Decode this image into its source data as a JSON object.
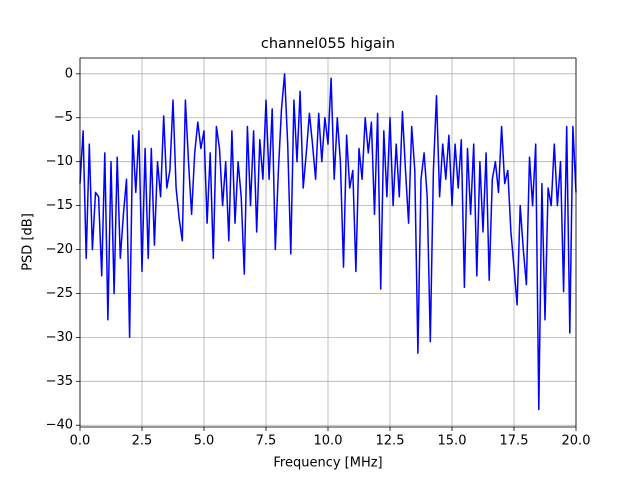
{
  "chart_data": {
    "type": "line",
    "title": "channel055 higain",
    "x_label": "Frequency [MHz]",
    "y_label": "PSD [dB]",
    "xlim": [
      0,
      20
    ],
    "ylim": [
      -40.2,
      1.8
    ],
    "grid": true,
    "xticks": [
      {
        "value": 0,
        "label": "0.0"
      },
      2.5,
      {
        "value": 5,
        "label": "5.0"
      },
      7.5,
      {
        "value": 10,
        "label": "10.0"
      },
      12.5,
      {
        "value": 15,
        "label": "15.0"
      },
      17.5,
      {
        "value": 20,
        "label": "20.0"
      }
    ],
    "yticks": [
      {
        "value": -40,
        "label": "−40"
      },
      {
        "value": -35,
        "label": "−35"
      },
      {
        "value": -30,
        "label": "−30"
      },
      {
        "value": -25,
        "label": "−25"
      },
      {
        "value": -20,
        "label": "−20"
      },
      {
        "value": -15,
        "label": "−15"
      },
      {
        "value": -10,
        "label": "−10"
      },
      {
        "value": -5,
        "label": "−5"
      },
      0
    ],
    "x": [
      0,
      0.125,
      0.25,
      0.375,
      0.5,
      0.625,
      0.75,
      0.875,
      1,
      1.125,
      1.25,
      1.375,
      1.5,
      1.625,
      1.75,
      1.875,
      2,
      2.125,
      2.25,
      2.375,
      2.5,
      2.625,
      2.75,
      2.875,
      3,
      3.125,
      3.25,
      3.375,
      3.5,
      3.625,
      3.75,
      3.875,
      4,
      4.125,
      4.25,
      4.375,
      4.5,
      4.625,
      4.75,
      4.875,
      5,
      5.125,
      5.25,
      5.375,
      5.5,
      5.625,
      5.75,
      5.875,
      6,
      6.125,
      6.25,
      6.375,
      6.5,
      6.625,
      6.75,
      6.875,
      7,
      7.125,
      7.25,
      7.375,
      7.5,
      7.625,
      7.75,
      7.875,
      8,
      8.125,
      8.25,
      8.375,
      8.5,
      8.625,
      8.75,
      8.875,
      9,
      9.125,
      9.25,
      9.375,
      9.5,
      9.625,
      9.75,
      9.875,
      10,
      10.125,
      10.25,
      10.375,
      10.5,
      10.625,
      10.75,
      10.875,
      11,
      11.125,
      11.25,
      11.375,
      11.5,
      11.625,
      11.75,
      11.875,
      12,
      12.125,
      12.25,
      12.375,
      12.5,
      12.625,
      12.75,
      12.875,
      13,
      13.125,
      13.25,
      13.375,
      13.5,
      13.625,
      13.75,
      13.875,
      14,
      14.125,
      14.25,
      14.375,
      14.5,
      14.625,
      14.75,
      14.875,
      15,
      15.125,
      15.25,
      15.375,
      15.5,
      15.625,
      15.75,
      15.875,
      16,
      16.125,
      16.25,
      16.375,
      16.5,
      16.625,
      16.75,
      16.875,
      17,
      17.125,
      17.25,
      17.375,
      17.5,
      17.625,
      17.75,
      17.875,
      18,
      18.125,
      18.25,
      18.375,
      18.5,
      18.625,
      18.75,
      18.875,
      19,
      19.125,
      19.25,
      19.375,
      19.5,
      19.625,
      19.75,
      19.875,
      20
    ],
    "series": [
      {
        "color": "#0000ff",
        "values": [
          -12.5,
          -6.5,
          -21,
          -8,
          -20,
          -13.5,
          -14,
          -23,
          -9,
          -28,
          -10,
          -25,
          -9.5,
          -21,
          -16,
          -12,
          -30,
          -7,
          -13.5,
          -6.5,
          -22.5,
          -8.5,
          -21,
          -8.5,
          -19.5,
          -10,
          -14,
          -4.8,
          -13,
          -11,
          -3,
          -13,
          -16.5,
          -19,
          -3,
          -10,
          -16,
          -9,
          -5.5,
          -8.5,
          -6.5,
          -17,
          -9,
          -21,
          -6,
          -8.5,
          -15,
          -10,
          -19,
          -6.5,
          -17,
          -10,
          -14,
          -22.8,
          -6,
          -15,
          -6.5,
          -18,
          -7.5,
          -12,
          -3,
          -12,
          -4,
          -20,
          -11,
          -4,
          0,
          -8,
          -20.5,
          -3,
          -10,
          -2,
          -13,
          -9,
          -4.5,
          -8,
          -12,
          -4.5,
          -10,
          -5,
          -8,
          -0.5,
          -12,
          -5,
          -10,
          -22,
          -7,
          -13,
          -11,
          -22.5,
          -8.5,
          -12,
          -5,
          -9,
          -5.5,
          -16,
          -4.5,
          -24.5,
          -6.5,
          -14,
          -5,
          -15,
          -8,
          -14,
          -4.3,
          -11,
          -17,
          -6,
          -11,
          -31.8,
          -12,
          -9,
          -14,
          -30.5,
          -11,
          -2.5,
          -14,
          -8,
          -12,
          -7,
          -15,
          -8,
          -13,
          -7.5,
          -24.3,
          -8.5,
          -16,
          -8,
          -23,
          -10,
          -18,
          -9,
          -23.5,
          -12,
          -10,
          -13.5,
          -6,
          -12.5,
          -11,
          -18,
          -22,
          -26.3,
          -15,
          -20,
          -24,
          -9.5,
          -15,
          -8,
          -38.2,
          -12.5,
          -28,
          -13,
          -15,
          -8,
          -15,
          -10,
          -24.8,
          -6,
          -29.5,
          -6,
          -13.5
        ]
      }
    ]
  }
}
